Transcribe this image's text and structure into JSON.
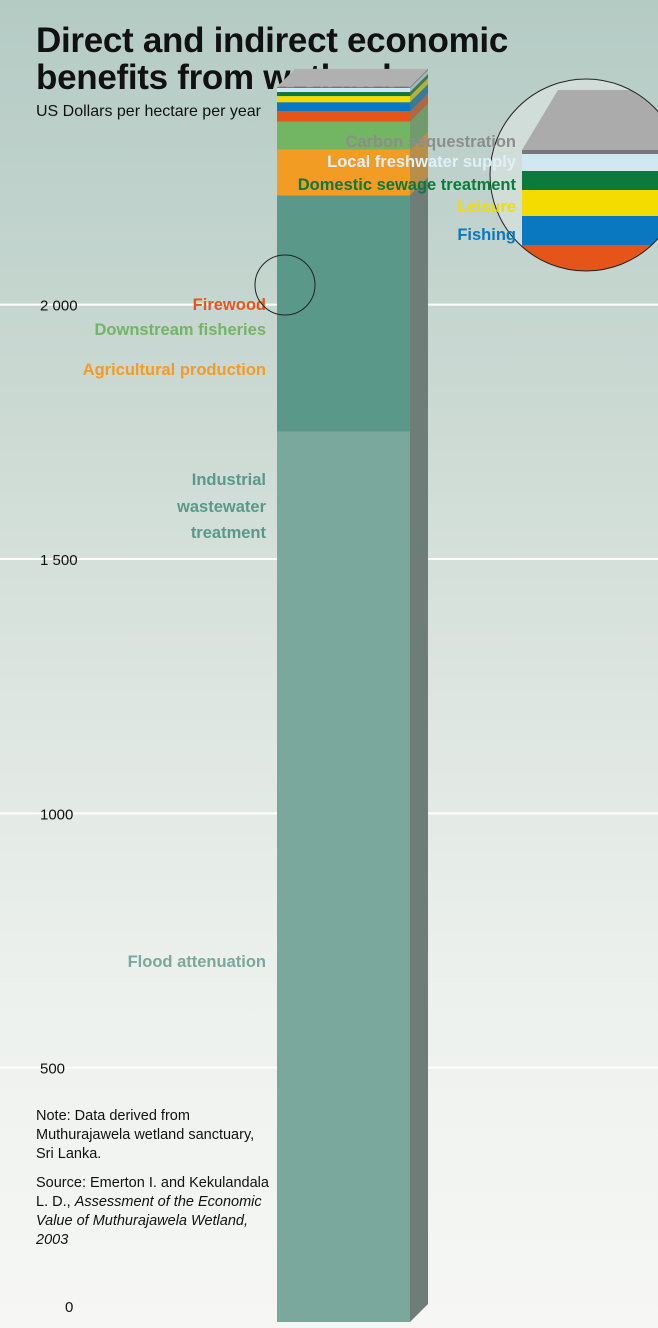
{
  "title_line1": "Direct and indirect economic",
  "title_line2": "benefits from wetlands",
  "subtitle": "US Dollars per hectare per year",
  "note": "Note: Data derived from Muthurajawela wetland sanctuary, Sri Lanka.",
  "source_prefix": "Source: Emerton  I. and Kekulandala L. D., ",
  "source_title": "Assessment of the Economic Value of Muthurajawela Wetland, 2003",
  "chart_data": {
    "type": "bar",
    "stacked": true,
    "title": "Direct and indirect economic benefits from wetlands",
    "ylabel": "US Dollars per hectare per year",
    "ylim": [
      0,
      2000
    ],
    "yticks": [
      "0",
      "500",
      "1000",
      "1 500",
      "2 000"
    ],
    "ytick_values": [
      0,
      500,
      1000,
      1500,
      2000
    ],
    "grid": true,
    "series": [
      {
        "name": "Flood attenuation",
        "label_lines": [
          "Flood attenuation"
        ],
        "value": 1750,
        "color": "#7aa89c",
        "label_color": "#7aa89c"
      },
      {
        "name": "Industrial wastewater treatment",
        "label_lines": [
          "Industrial",
          "wastewater",
          "treatment"
        ],
        "value": 465,
        "color": "#5a998a",
        "label_color": "#5a998a"
      },
      {
        "name": "Agricultural production",
        "label_lines": [
          "Agricultural production"
        ],
        "value": 90,
        "color": "#f39c24",
        "label_color": "#f39c24"
      },
      {
        "name": "Downstream fisheries",
        "label_lines": [
          "Downstream fisheries"
        ],
        "value": 55,
        "color": "#72b563",
        "label_color": "#72b563"
      },
      {
        "name": "Firewood",
        "label_lines": [
          "Firewood"
        ],
        "value": 20,
        "color": "#e5551a",
        "label_color": "#e5551a"
      },
      {
        "name": "Fishing",
        "label_lines": [
          "Fishing"
        ],
        "value": 18,
        "color": "#0a78c0",
        "label_color": "#0a78c0"
      },
      {
        "name": "Leisure",
        "label_lines": [
          "Leisure"
        ],
        "value": 12,
        "color": "#f5dc00",
        "label_color": "#f5dc00"
      },
      {
        "name": "Domestic sewage treatment",
        "label_lines": [
          "Domestic sewage treatment"
        ],
        "value": 8,
        "color": "#0c7a3c",
        "label_color": "#0c7a3c"
      },
      {
        "name": "Local freshwater supply",
        "label_lines": [
          "Local freshwater supply"
        ],
        "value": 8,
        "color": "#d0e8f2",
        "label_color": "#dff1f8"
      },
      {
        "name": "Carbon sequestration",
        "label_lines": [
          "Carbon sequestration"
        ],
        "value": 2,
        "color": "#777777",
        "label_color": "#8d8d8d"
      }
    ]
  }
}
